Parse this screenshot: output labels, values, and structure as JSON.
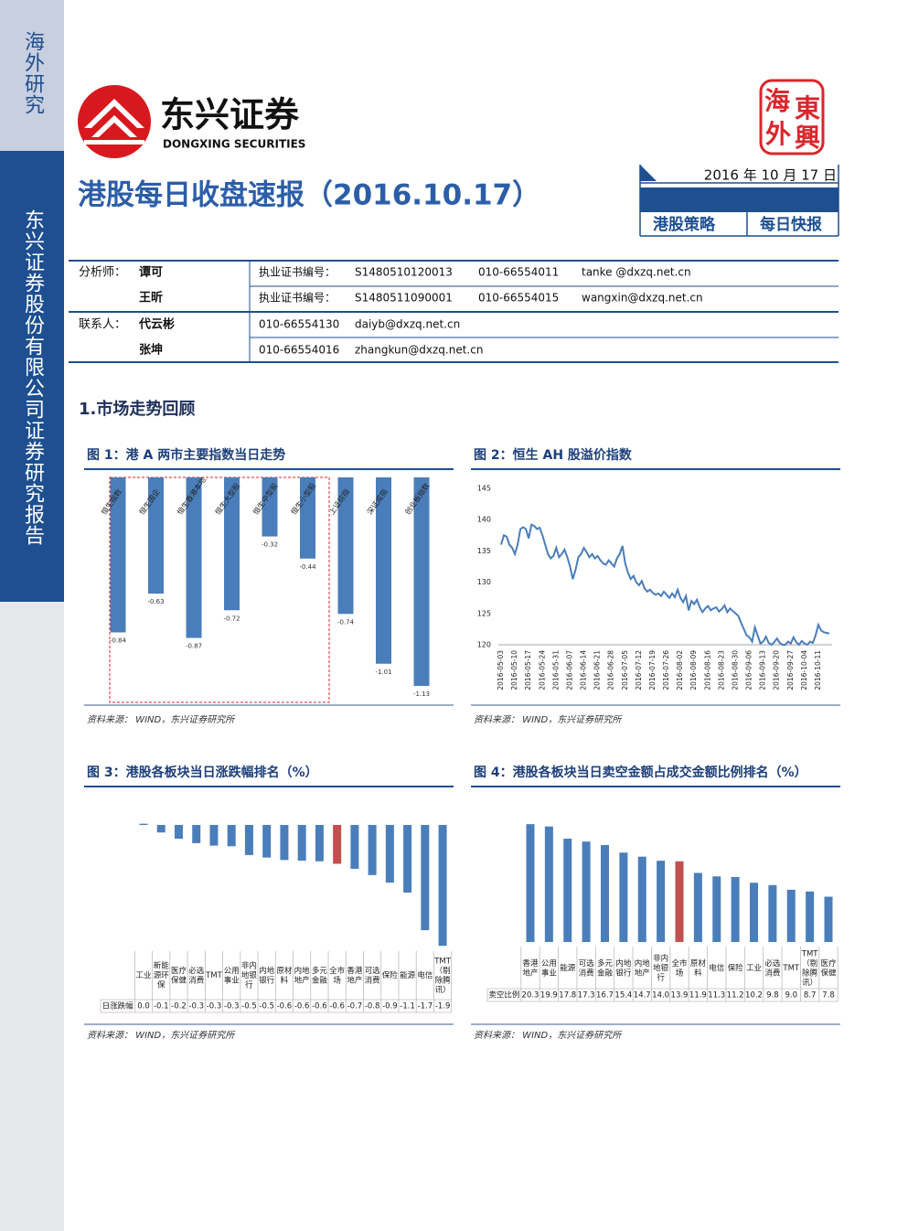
{
  "sidebar": {
    "section": "海外研究",
    "company": "东兴证券股份有限公司证券研究报告"
  },
  "header": {
    "logo_cn": "东兴证券",
    "logo_en": "DONGXING SECURITIES",
    "seal": [
      "海",
      "東",
      "外",
      "興"
    ],
    "title": "港股每日收盘速报（2016.10.17）",
    "date": "2016 年 10 月 17 日",
    "tags": [
      "港股策略",
      "每日快报"
    ]
  },
  "contacts": [
    {
      "role": "分析师：",
      "name": "谭可",
      "details": [
        "执业证书编号：",
        "S1480510120013",
        "010-66554011",
        "tanke @dxzq.net.cn"
      ]
    },
    {
      "name": "王昕",
      "details": [
        "执业证书编号：",
        "S1480511090001",
        "010-66554015",
        "wangxin@dxzq.net.cn"
      ]
    },
    {
      "role": "联系人：",
      "name": "代云彬",
      "details": [
        "010-66554130",
        "daiyb@dxzq.net.cn"
      ]
    },
    {
      "name": "张坤",
      "details": [
        "010-66554016",
        "zhangkun@dxzq.net.cn"
      ]
    }
  ],
  "section_title": "1.市场走势回顾",
  "chart_data": [
    {
      "type": "bar",
      "title": "图 1：港 A 两市主要指数当日走势",
      "source": "资料来源： WIND，东兴证券研究所",
      "categories": [
        "恒生指数",
        "恒生国企",
        "恒生香港本地",
        "恒生大型股",
        "恒生中型股",
        "恒生小型股",
        "上证综指",
        "深证成指",
        "创业板指数"
      ],
      "values": [
        -0.84,
        -0.63,
        -0.87,
        -0.72,
        -0.32,
        -0.44,
        -0.74,
        -1.01,
        -1.13
      ],
      "color": "#4a7ebb",
      "ylim": [
        -1.15,
        0
      ]
    },
    {
      "type": "line",
      "title": "图 2：恒生 AH 股溢价指数",
      "source": "资料来源： WIND，东兴证券研究所",
      "categories": [
        "2016-05-03",
        null,
        null,
        null,
        null,
        "2016-05-10",
        null,
        null,
        null,
        null,
        "2016-05-17",
        null,
        null,
        null,
        null,
        "2016-05-24",
        null,
        null,
        null,
        null,
        "2016-05-31",
        null,
        null,
        null,
        null,
        "2016-06-07",
        null,
        null,
        null,
        null,
        "2016-06-14",
        null,
        null,
        null,
        null,
        "2016-06-21",
        null,
        null,
        null,
        null,
        "2016-06-28",
        null,
        null,
        null,
        null,
        "2016-07-05",
        null,
        null,
        null,
        null,
        "2016-07-12",
        null,
        null,
        null,
        null,
        "2016-07-19",
        null,
        null,
        null,
        null,
        "2016-07-26",
        null,
        null,
        null,
        null,
        "2016-08-02",
        null,
        null,
        null,
        null,
        "2016-08-09",
        null,
        null,
        null,
        null,
        "2016-08-16",
        null,
        null,
        null,
        null,
        "2016-08-23",
        null,
        null,
        null,
        null,
        "2016-08-30",
        null,
        null,
        null,
        null,
        "2016-09-06",
        null,
        null,
        null,
        null,
        "2016-09-13",
        null,
        null,
        null,
        null,
        "2016-09-20",
        null,
        null,
        null,
        null,
        "2016-09-27",
        null,
        null,
        null,
        null,
        "2016-10-04",
        null,
        null,
        null,
        null,
        "2016-10-11",
        null,
        null,
        null,
        null
      ],
      "values": [
        136,
        137.5,
        137.3,
        136,
        135.5,
        134.5,
        136,
        138.5,
        138.8,
        138.5,
        137,
        139.2,
        139,
        138.5,
        138.7,
        137.5,
        136,
        134.5,
        133.8,
        134.2,
        135.5,
        134,
        134.5,
        135.2,
        134,
        132.5,
        130.5,
        132,
        134,
        134.5,
        135.5,
        134.8,
        134,
        134.5,
        133.8,
        134.2,
        133.5,
        133,
        132.8,
        133.5,
        133,
        132.5,
        133.8,
        134.5,
        135.8,
        133,
        131.5,
        130.5,
        131,
        130,
        129.5,
        130.2,
        129,
        128.5,
        128.8,
        128.3,
        128,
        128.2,
        127.8,
        128.5,
        128,
        127.5,
        128.2,
        127.6,
        128.8,
        127.5,
        126.8,
        127.8,
        125.5,
        127,
        126.5,
        127.2,
        126,
        125.2,
        125.8,
        126.2,
        125.5,
        125.8,
        126,
        125.3,
        125.7,
        126.3,
        125.2,
        125.8,
        125.4,
        125,
        124.6,
        123.5,
        122.5,
        121.5,
        121.2,
        120.5,
        122.8,
        121.5,
        120.2,
        120.5,
        121.3,
        120.3,
        120,
        120.4,
        121,
        120.3,
        120,
        120,
        120.5,
        120.2,
        121.2,
        120.4,
        120,
        120.6,
        120.2,
        120,
        120.5,
        120.3,
        121.5,
        123.2,
        122.3,
        122,
        121.9,
        121.8
      ],
      "color": "#4a7ebb",
      "ylim": [
        120,
        145
      ],
      "yticks": [
        120,
        125,
        130,
        135,
        140,
        145
      ]
    },
    {
      "type": "bar",
      "title": "图 3：港股各板块当日涨跌幅排名（%）",
      "source": "资料来源： WIND，东兴证券研究所",
      "categories": [
        "工业",
        "新能源环保",
        "医疗保健",
        "必选消费",
        "TMT",
        "公用事业",
        "非内地银行",
        "内地银行",
        "原材料",
        "内地地产",
        "多元金融",
        "全市场",
        "香港地产",
        "可选消费",
        "保险",
        "能源",
        "电信",
        "TMT（剔除腾讯）"
      ],
      "series": [
        {
          "name": "日涨跌幅",
          "values": [
            0.02,
            -0.12,
            -0.22,
            -0.29,
            -0.33,
            -0.34,
            -0.48,
            -0.52,
            -0.56,
            -0.57,
            -0.58,
            -0.62,
            -0.7,
            -0.8,
            -0.92,
            -1.08,
            -1.68,
            -1.93
          ],
          "value_labels": [
            "0.0",
            "-0.1",
            "-0.2",
            "-0.3",
            "-0.3",
            "-0.3",
            "-0.5",
            "-0.5",
            "-0.6",
            "-0.6",
            "-0.6",
            "-0.6",
            "-0.7",
            "-0.8",
            "-0.9",
            "-1.1",
            "-1.7",
            "-1.9"
          ],
          "colors": [
            "#4a7ebb",
            "#4a7ebb",
            "#4a7ebb",
            "#4a7ebb",
            "#4a7ebb",
            "#4a7ebb",
            "#4a7ebb",
            "#4a7ebb",
            "#4a7ebb",
            "#4a7ebb",
            "#4a7ebb",
            "#c0504d",
            "#4a7ebb",
            "#4a7ebb",
            "#4a7ebb",
            "#4a7ebb",
            "#4a7ebb",
            "#4a7ebb"
          ]
        }
      ],
      "ylim": [
        -2,
        0.05
      ]
    },
    {
      "type": "bar",
      "title": "图 4：港股各板块当日卖空金额占成交金额比例排名（%）",
      "source": "资料来源： WIND，东兴证券研究所",
      "categories": [
        "香港地产",
        "公用事业",
        "能源",
        "可选消费",
        "多元金融",
        "内地银行",
        "内地地产",
        "非内地银行",
        "全市场",
        "原材料",
        "电信",
        "保险",
        "工业",
        "必选消费",
        "TMT",
        "TMT（剔除腾讯）",
        "医疗保健"
      ],
      "series": [
        {
          "name": "卖空比例",
          "values": [
            20.3,
            19.9,
            17.8,
            17.3,
            16.7,
            15.4,
            14.7,
            14.0,
            13.9,
            11.9,
            11.3,
            11.2,
            10.2,
            9.8,
            9.0,
            8.7,
            7.8
          ],
          "value_labels": [
            "20.3",
            "19.9",
            "17.8",
            "17.3",
            "16.7",
            "15.4",
            "14.7",
            "14.0",
            "13.9",
            "11.9",
            "11.3",
            "11.2",
            "10.2",
            "9.8",
            "9.0",
            "8.7",
            "7.8"
          ],
          "colors": [
            "#4a7ebb",
            "#4a7ebb",
            "#4a7ebb",
            "#4a7ebb",
            "#4a7ebb",
            "#4a7ebb",
            "#4a7ebb",
            "#4a7ebb",
            "#c0504d",
            "#4a7ebb",
            "#4a7ebb",
            "#4a7ebb",
            "#4a7ebb",
            "#4a7ebb",
            "#4a7ebb",
            "#4a7ebb",
            "#4a7ebb"
          ]
        }
      ],
      "ylim": [
        0,
        21
      ]
    }
  ]
}
